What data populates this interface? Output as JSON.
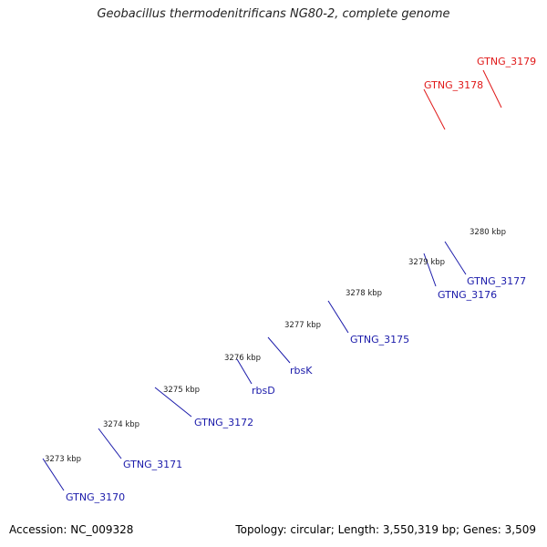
{
  "header": {
    "title": "Geobacillus thermodenitrificans NG80-2, complete genome"
  },
  "footer": {
    "accession": "Accession: NC_009328",
    "summary": "Topology: circular; Length: 3,550,319 bp; Genes: 3,509"
  },
  "colors": {
    "forward_gene": "#0000ee",
    "reverse_gene": "#22d3cf",
    "highlight_gene": "#ff0000",
    "other_feature": "#6a6a6a",
    "backbone": "#8a8a8a",
    "ticks": "#1a7a1a",
    "gene_label": "#1a1aaa",
    "highlight_label": "#e01818"
  },
  "scale_labels": [
    "3273 kbp",
    "3274 kbp",
    "3275 kbp",
    "3276 kbp",
    "3277 kbp",
    "3278 kbp",
    "3279 kbp",
    "3280 kbp"
  ],
  "gene_labels": [
    {
      "text": "GTNG_3170",
      "color": "gene_label"
    },
    {
      "text": "GTNG_3171",
      "color": "gene_label"
    },
    {
      "text": "GTNG_3172",
      "color": "gene_label"
    },
    {
      "text": "rbsD",
      "color": "gene_label"
    },
    {
      "text": "rbsK",
      "color": "gene_label"
    },
    {
      "text": "GTNG_3175",
      "color": "gene_label"
    },
    {
      "text": "GTNG_3176",
      "color": "gene_label"
    },
    {
      "text": "GTNG_3177",
      "color": "gene_label"
    },
    {
      "text": "GTNG_3178",
      "color": "highlight_label"
    },
    {
      "text": "GTNG_3179",
      "color": "highlight_label"
    }
  ]
}
